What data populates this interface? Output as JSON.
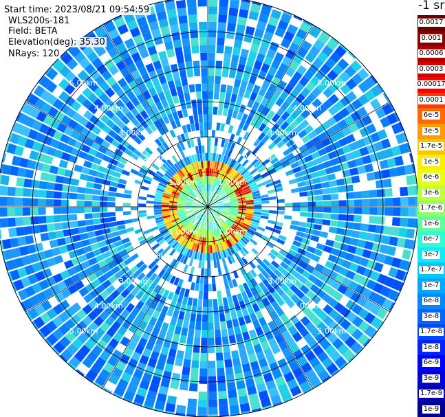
{
  "header": {
    "start_time": "Start time: 2023/08/21 09:54:59",
    "device": "WLS200s-181",
    "field": "Field: BETA",
    "elevation": "Elevation(deg): 35.30",
    "nrays": "NRays: 120"
  },
  "colorbar": {
    "unit": "-1 sr",
    "labels": [
      "0.0017",
      "0.001",
      "0.0006",
      "0.0003",
      "0.00017",
      "0.0001",
      "6e-5",
      "3e-5",
      "1.7e-5",
      "1e-5",
      "6e-6",
      "3e-6",
      "1.7e-6",
      "1e-6",
      "6e-7",
      "3e-7",
      "1.7e-7",
      "1e-7",
      "6e-8",
      "3e-8",
      "1.7e-8",
      "1e-8",
      "6e-9",
      "3e-9",
      "1.7e-9",
      "1e-9"
    ],
    "colors": [
      "#6a0000",
      "#8a0000",
      "#b00000",
      "#d80000",
      "#ff0000",
      "#ff3a00",
      "#ff6a00",
      "#ff9a00",
      "#ffc400",
      "#ffee00",
      "#e8ff10",
      "#c0ff3a",
      "#90ff66",
      "#5cff9a",
      "#2effd0",
      "#10eaff",
      "#00c8ff",
      "#00a8ff",
      "#0088ff",
      "#0066ff",
      "#0046ff",
      "#0024ff",
      "#0000ff",
      "#0000d8",
      "#0000b0",
      "#000090"
    ]
  },
  "chart_data": {
    "type": "heatmap",
    "projection": "polar",
    "nrays": 120,
    "range_rings_km": [
      1,
      2,
      3,
      4,
      5
    ],
    "range_ring_labels": [
      "1.00km",
      "2.00km",
      "3.00km",
      "4.00km",
      "5.00km"
    ],
    "max_range_km": 6,
    "spokes_deg": [
      0,
      30,
      60,
      90,
      120,
      150,
      180,
      210,
      240,
      270,
      300,
      330
    ],
    "field": "BETA",
    "description_bands": [
      {
        "range_km": [
          0,
          0.7
        ],
        "level": "1.7e-7"
      },
      {
        "range_km": [
          0.7,
          1.2
        ],
        "level": "3e-5"
      },
      {
        "range_km": [
          1.2,
          2.5
        ],
        "level": "1e-8"
      },
      {
        "range_km": [
          2.5,
          6.0
        ],
        "level": "6e-8"
      }
    ]
  }
}
